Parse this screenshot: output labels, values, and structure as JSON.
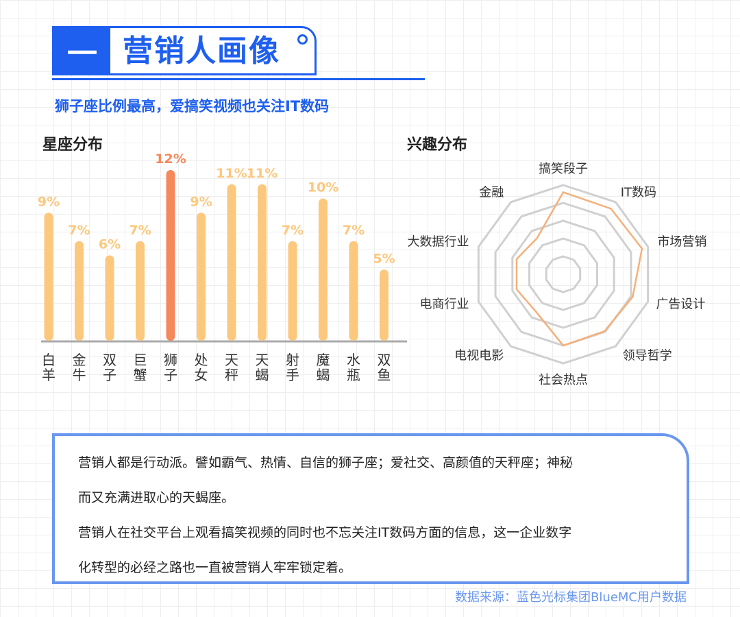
{
  "header": {
    "number": "一",
    "title": "营销人画像",
    "subtitle": "狮子座比例最高，爱搞笑视频也关注IT数码",
    "accent_color": "#1e5fef"
  },
  "zodiac_section": {
    "label": "星座分布"
  },
  "interest_section": {
    "label": "兴趣分布"
  },
  "chart_data": [
    {
      "type": "bar",
      "title": "星座分布",
      "categories": [
        "白羊",
        "金牛",
        "双子",
        "巨蟹",
        "狮子",
        "处女",
        "天秤",
        "天蝎",
        "射手",
        "魔蝎",
        "水瓶",
        "双鱼"
      ],
      "values": [
        9,
        7,
        6,
        7,
        12,
        9,
        11,
        11,
        7,
        10,
        7,
        5
      ],
      "value_labels": [
        "9%",
        "7%",
        "6%",
        "7%",
        "12%",
        "9%",
        "11%",
        "11%",
        "7%",
        "10%",
        "7%",
        "5%"
      ],
      "highlight_index": 4,
      "colors": {
        "default": "#fcc87e",
        "highlight": "#f5895b",
        "axis": "#aaaaaa"
      },
      "ylim": [
        0,
        12
      ]
    },
    {
      "type": "radar",
      "title": "兴趣分布",
      "axes": [
        "搞笑段子",
        "IT数码",
        "市场营销",
        "广告设计",
        "领导哲学",
        "社会热点",
        "电视电影",
        "电商行业",
        "大数据行业",
        "金融"
      ],
      "values": [
        0.92,
        0.91,
        0.93,
        0.82,
        0.79,
        0.8,
        0.52,
        0.55,
        0.55,
        0.5
      ],
      "grid_levels": 5,
      "colors": {
        "line": "#f5b07a",
        "grid": "#d0d0d0"
      }
    }
  ],
  "summary": {
    "lines": [
      "营销人都是行动派。譬如霸气、热情、自信的狮子座；爱社交、高颜值的天秤座；神秘",
      "而又充满进取心的天蝎座。",
      "营销人在社交平台上观看搞笑视频的同时也不忘关注IT数码方面的信息，这一企业数字",
      "化转型的必经之路也一直被营销人牢牢锁定着。"
    ]
  },
  "source": "数据来源：蓝色光标集团BlueMC用户数据"
}
